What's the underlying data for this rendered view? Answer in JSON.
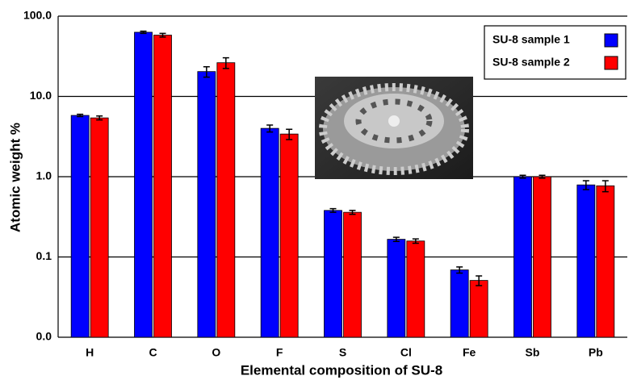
{
  "chart_data": {
    "type": "bar",
    "x_label": "Elemental composition of SU-8",
    "y_label": "Atomic weight %",
    "categories": [
      "H",
      "C",
      "O",
      "F",
      "S",
      "Cl",
      "Fe",
      "Sb",
      "Pb"
    ],
    "series": [
      {
        "name": "SU-8 sample 1",
        "color": "#0000ff",
        "values": [
          5.8,
          63,
          20.4,
          4.0,
          0.38,
          0.166,
          0.069,
          1.0,
          0.79
        ],
        "errors": [
          0.2,
          2,
          3,
          0.4,
          0.02,
          0.01,
          0.006,
          0.04,
          0.1
        ]
      },
      {
        "name": "SU-8 sample 2",
        "color": "#ff0000",
        "values": [
          5.4,
          58,
          26.3,
          3.4,
          0.36,
          0.158,
          0.051,
          1.0,
          0.77
        ],
        "errors": [
          0.3,
          3,
          4,
          0.5,
          0.02,
          0.01,
          0.007,
          0.04,
          0.12
        ]
      }
    ],
    "log_scale": true,
    "ylim": [
      0.01,
      100
    ],
    "yticks": [
      {
        "value": 0.01,
        "label": "0.0"
      },
      {
        "value": 0.1,
        "label": "0.1"
      },
      {
        "value": 1,
        "label": "1.0"
      },
      {
        "value": 10,
        "label": "10.0"
      },
      {
        "value": 100,
        "label": "100.0"
      }
    ],
    "grid": true,
    "legend": "upper right"
  }
}
